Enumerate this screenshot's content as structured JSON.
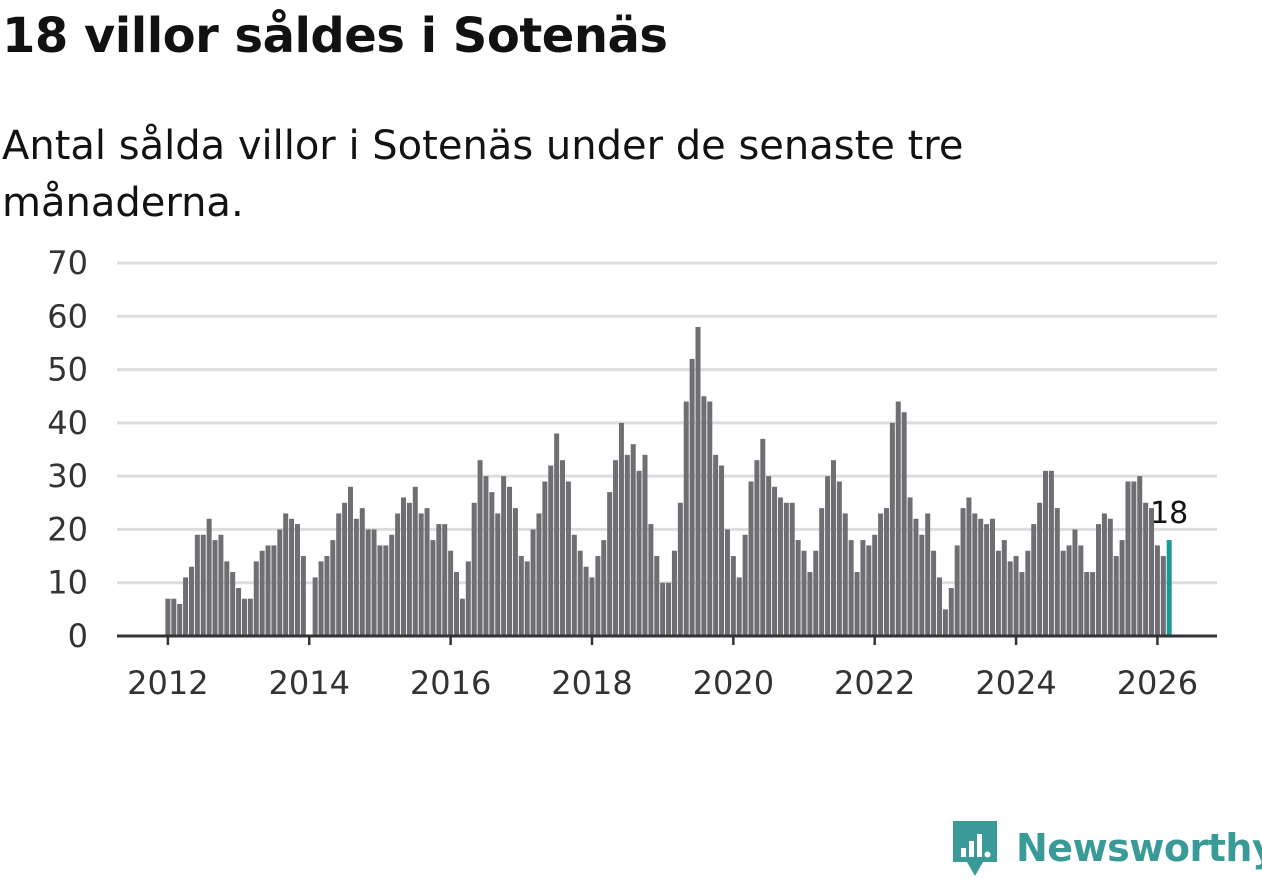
{
  "title": "18 villor såldes i Sotenäs",
  "subtitle": "Antal sålda villor i Sotenäs under de senaste tre månaderna.",
  "brand": "Newsworthy",
  "colors": {
    "bar": "#6f6e73",
    "highlight": "#1a9a96",
    "grid": "#dddddd",
    "axis": "#333333",
    "brand": "#3a9a98"
  },
  "chart_data": {
    "type": "bar",
    "title": "18 villor såldes i Sotenäs",
    "xlabel": "",
    "ylabel": "",
    "ylim": [
      0,
      70
    ],
    "yticks": [
      "0",
      "10",
      "20",
      "30",
      "40",
      "50",
      "60",
      "70"
    ],
    "xticks": [
      "2012",
      "2014",
      "2016",
      "2018",
      "2020",
      "2022",
      "2024",
      "2026"
    ],
    "x_start": "2012-01",
    "last_label": "18",
    "values": [
      7,
      7,
      6,
      11,
      13,
      19,
      19,
      22,
      18,
      19,
      14,
      12,
      9,
      7,
      7,
      14,
      16,
      17,
      17,
      20,
      23,
      22,
      21,
      15,
      0,
      11,
      14,
      15,
      18,
      23,
      25,
      28,
      22,
      24,
      20,
      20,
      17,
      17,
      19,
      23,
      26,
      25,
      28,
      23,
      24,
      18,
      21,
      21,
      16,
      12,
      7,
      14,
      25,
      33,
      30,
      27,
      23,
      30,
      28,
      24,
      15,
      14,
      20,
      23,
      29,
      32,
      38,
      33,
      29,
      19,
      16,
      13,
      11,
      15,
      18,
      27,
      33,
      40,
      34,
      36,
      31,
      34,
      21,
      15,
      10,
      10,
      16,
      25,
      44,
      52,
      58,
      45,
      44,
      34,
      32,
      20,
      15,
      11,
      19,
      29,
      33,
      37,
      30,
      28,
      26,
      25,
      25,
      18,
      16,
      12,
      16,
      24,
      30,
      33,
      29,
      23,
      18,
      12,
      18,
      17,
      19,
      23,
      24,
      40,
      44,
      42,
      26,
      22,
      19,
      23,
      16,
      11,
      5,
      9,
      17,
      24,
      26,
      23,
      22,
      21,
      22,
      16,
      18,
      14,
      15,
      12,
      16,
      21,
      25,
      31,
      31,
      24,
      16,
      17,
      20,
      17,
      12,
      12,
      21,
      23,
      22,
      15,
      18,
      29,
      29,
      30,
      25,
      24,
      17,
      15,
      18
    ]
  }
}
